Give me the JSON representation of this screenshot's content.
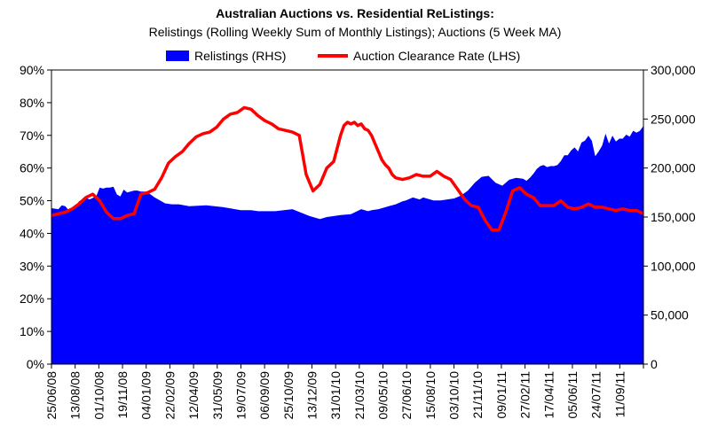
{
  "chart_data": {
    "type": "area+line",
    "title": "Australian Auctions vs. Residential ReListings:",
    "subtitle": "Relistings (Rolling Weekly Sum of Monthly Listings); Auctions (5 Week MA)",
    "legend": {
      "placement": "top",
      "entries": [
        "Relistings (RHS)",
        "Auction Clearance Rate (LHS)"
      ]
    },
    "colors": {
      "area": "#0000ff",
      "line": "#ff0000"
    },
    "x_tick_labels": [
      "25/06/08",
      "13/08/08",
      "01/10/08",
      "19/11/08",
      "04/01/09",
      "22/02/09",
      "12/04/09",
      "31/05/09",
      "19/07/09",
      "06/09/09",
      "25/10/09",
      "13/12/09",
      "31/01/10",
      "21/03/10",
      "09/05/10",
      "27/06/10",
      "15/08/10",
      "03/10/10",
      "21/11/10",
      "09/01/11",
      "27/02/11",
      "17/04/11",
      "05/06/11",
      "24/07/11",
      "11/09/11"
    ],
    "x_range_weeks": [
      0,
      172
    ],
    "y_left": {
      "min": 0,
      "max": 90,
      "step": 10,
      "tick_labels": [
        "0%",
        "10%",
        "20%",
        "30%",
        "40%",
        "50%",
        "60%",
        "70%",
        "80%",
        "90%"
      ]
    },
    "y_right": {
      "min": 0,
      "max": 300000,
      "step": 50000,
      "tick_labels": [
        "0",
        "50,000",
        "100,000",
        "150,000",
        "200,000",
        "250,000",
        "300,000"
      ]
    },
    "series": [
      {
        "name": "Relistings (RHS)",
        "axis": "right",
        "kind": "area",
        "x": [
          0,
          2,
          3,
          4,
          5,
          7,
          8,
          10,
          11,
          13,
          14,
          15,
          16,
          17,
          18,
          19,
          20,
          21,
          22,
          24,
          25,
          26,
          27,
          28,
          30,
          33,
          35,
          37,
          40,
          45,
          50,
          55,
          58,
          60,
          65,
          70,
          75,
          78,
          80,
          84,
          87,
          90,
          92,
          93,
          95,
          98,
          100,
          102,
          103,
          105,
          107,
          108,
          110,
          111,
          113,
          115,
          117,
          119,
          121,
          123,
          125,
          127,
          129,
          131,
          133,
          135,
          137,
          138,
          139,
          140,
          141,
          142,
          143,
          144,
          145,
          146,
          147,
          148,
          149,
          150,
          151,
          152,
          153,
          154,
          155,
          156,
          157,
          158,
          159,
          160,
          161,
          162,
          163,
          164,
          165,
          166,
          167,
          168,
          169,
          170,
          171,
          172
        ],
        "y": [
          159000,
          158000,
          162000,
          161000,
          157000,
          161000,
          166000,
          170000,
          168000,
          171000,
          180000,
          179000,
          180000,
          180000,
          181000,
          173000,
          171000,
          178000,
          175000,
          177000,
          177000,
          176000,
          176000,
          175000,
          170000,
          164000,
          163000,
          163000,
          161000,
          162000,
          160000,
          157000,
          157000,
          156000,
          156000,
          158000,
          151000,
          148000,
          150000,
          152000,
          153000,
          158000,
          156000,
          157000,
          158000,
          161000,
          163000,
          166000,
          167000,
          170000,
          168000,
          170000,
          168000,
          167000,
          167000,
          168000,
          169000,
          172000,
          177000,
          185000,
          191000,
          192000,
          185000,
          182000,
          188000,
          190000,
          189000,
          187000,
          190000,
          194000,
          199000,
          202000,
          203000,
          201000,
          202000,
          202000,
          203000,
          207000,
          213000,
          213000,
          218000,
          221000,
          217000,
          226000,
          228000,
          233000,
          228000,
          212000,
          217000,
          223000,
          235000,
          225000,
          233000,
          227000,
          230000,
          230000,
          234000,
          232000,
          238000,
          236000,
          238000,
          243000
        ]
      },
      {
        "name": "Auction Clearance Rate (LHS)",
        "axis": "left",
        "kind": "line",
        "x": [
          0,
          2,
          4,
          6,
          8,
          10,
          12,
          14,
          16,
          18,
          20,
          22,
          24,
          26,
          28,
          30,
          32,
          34,
          36,
          38,
          40,
          42,
          44,
          46,
          48,
          50,
          52,
          54,
          56,
          58,
          60,
          62,
          64,
          66,
          68,
          70,
          72,
          74,
          76,
          78,
          80,
          82,
          84,
          85,
          86,
          87,
          88,
          89,
          90,
          91,
          92,
          93,
          94,
          95,
          96,
          97,
          98,
          99,
          100,
          102,
          104,
          106,
          108,
          110,
          112,
          114,
          116,
          118,
          120,
          122,
          124,
          126,
          128,
          130,
          132,
          134,
          136,
          138,
          140,
          142,
          144,
          146,
          148,
          150,
          152,
          154,
          156,
          158,
          160,
          162,
          164,
          166,
          168,
          170,
          172
        ],
        "y": [
          45.5,
          46,
          46.5,
          47.5,
          49,
          51,
          52,
          50,
          46.5,
          44.5,
          44.5,
          45.5,
          46,
          52,
          52.5,
          53.5,
          57,
          61.5,
          63.5,
          65,
          67.5,
          69.5,
          70.5,
          71,
          72.5,
          75,
          76.5,
          77,
          78.5,
          78,
          76,
          74.5,
          73.5,
          72,
          71.5,
          71,
          70,
          58,
          53,
          55,
          60,
          62,
          70,
          73,
          74,
          73.5,
          74,
          73,
          73.5,
          72,
          71.5,
          70,
          67.5,
          65,
          62.5,
          61,
          60,
          58,
          57,
          56.5,
          57,
          58,
          57.5,
          57.5,
          59,
          57.5,
          56.5,
          53.5,
          50.5,
          48.5,
          48,
          44,
          41,
          41,
          46.5,
          53,
          54,
          52,
          51,
          48.5,
          48.5,
          48.5,
          50,
          48,
          47.5,
          48,
          49,
          48,
          48,
          47.5,
          47,
          47.5,
          47,
          47,
          46
        ]
      }
    ]
  }
}
